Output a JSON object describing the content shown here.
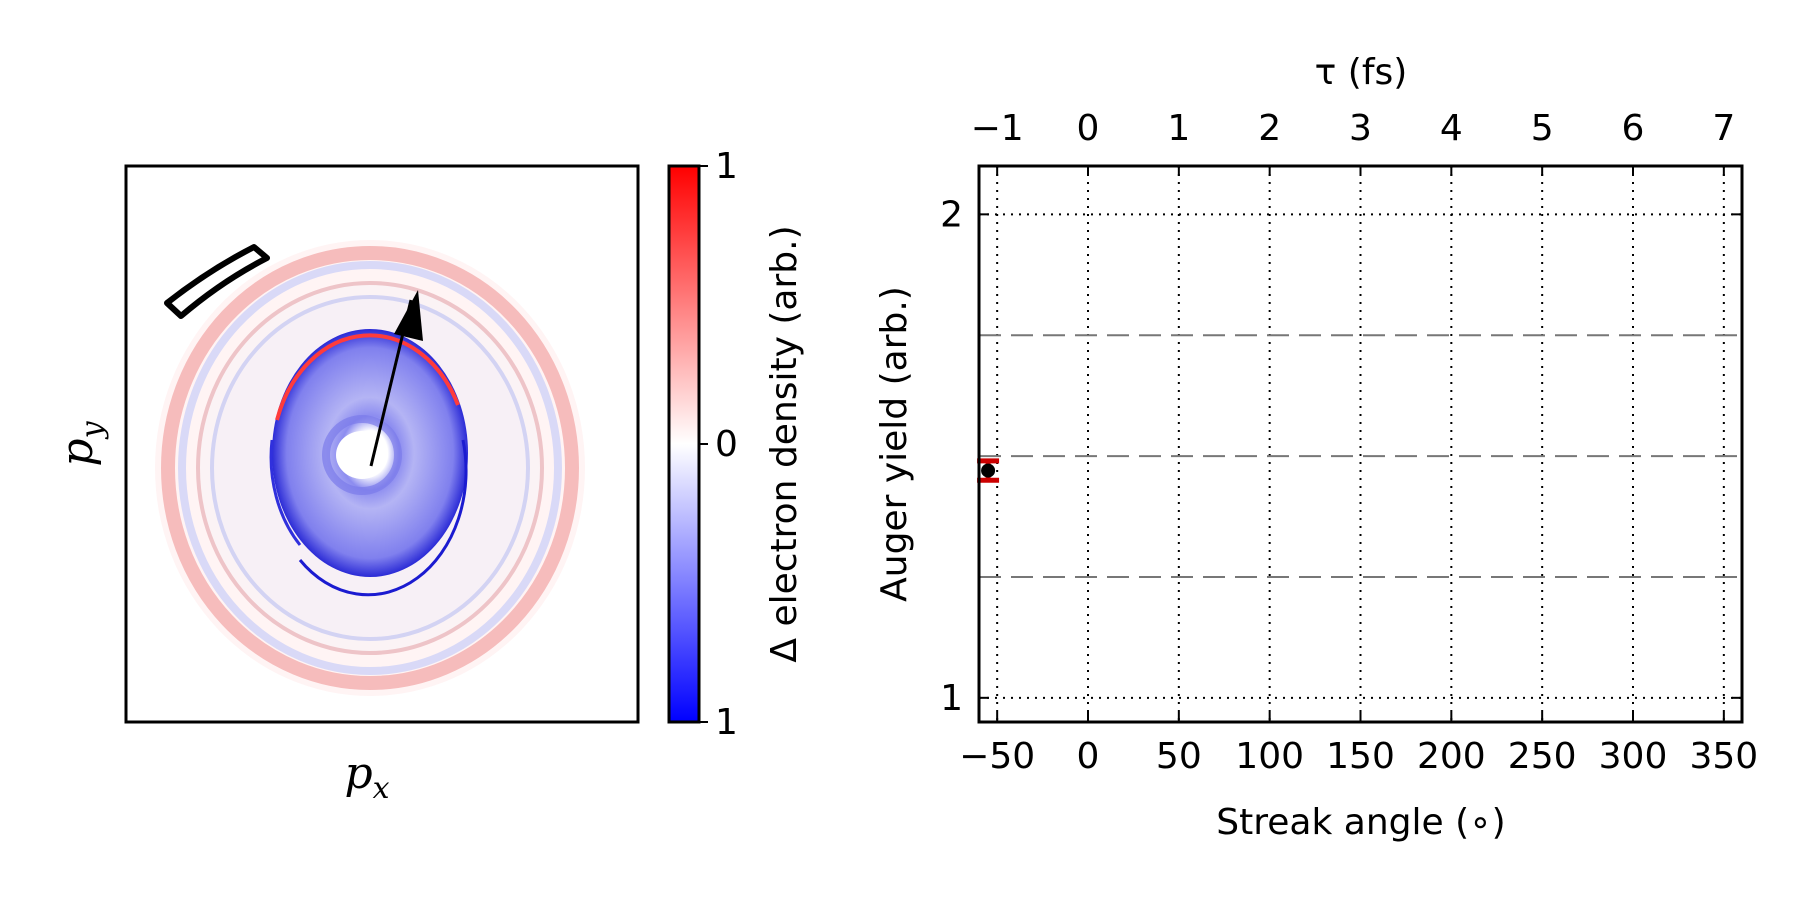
{
  "chart_data": [
    {
      "type": "heatmap",
      "xlabel": "p",
      "xlabel_sub": "x",
      "ylabel": "p",
      "ylabel_sub": "y",
      "annotations": [
        "rectangular window on outer ring",
        "arrow from center toward upper ring"
      ],
      "colorbar": {
        "label": "Δ electron density (arb.)",
        "ticks": [
          "1",
          "0",
          "1"
        ],
        "colors": {
          "top": "#ff0000",
          "middle": "#ffffff",
          "bottom": "#0000ff"
        }
      }
    },
    {
      "type": "scatter",
      "xlabel": "Streak angle (∘)",
      "ylabel": "Auger yield (arb.)",
      "top_xlabel": "τ (fs)",
      "xlim": [
        -60,
        360
      ],
      "ylim": [
        0.95,
        2.1
      ],
      "x_ticks": [
        -50,
        0,
        50,
        100,
        150,
        200,
        250,
        300,
        350
      ],
      "x_tick_labels": [
        "−50",
        "0",
        "50",
        "100",
        "150",
        "200",
        "250",
        "300",
        "350"
      ],
      "y_ticks": [
        1,
        2
      ],
      "y_tick_labels": [
        "1",
        "2"
      ],
      "top_ticks": [
        -1,
        0,
        1,
        2,
        3,
        4,
        5,
        6,
        7
      ],
      "top_tick_labels": [
        "−1",
        "0",
        "1",
        "2",
        "3",
        "4",
        "5",
        "6",
        "7"
      ],
      "fs_per_degree": 0.02,
      "dotted_x_grid": [
        -50,
        0,
        50,
        100,
        150,
        200,
        250,
        300,
        350
      ],
      "dotted_y_grid": [
        1,
        2
      ],
      "dashed_h_lines": [
        1.25,
        1.5,
        1.75
      ],
      "points": [
        {
          "x": -55,
          "y": 1.47,
          "yerr": 0.02
        }
      ],
      "point_color": "#000000",
      "errorbar_color": "#cc0000"
    }
  ]
}
